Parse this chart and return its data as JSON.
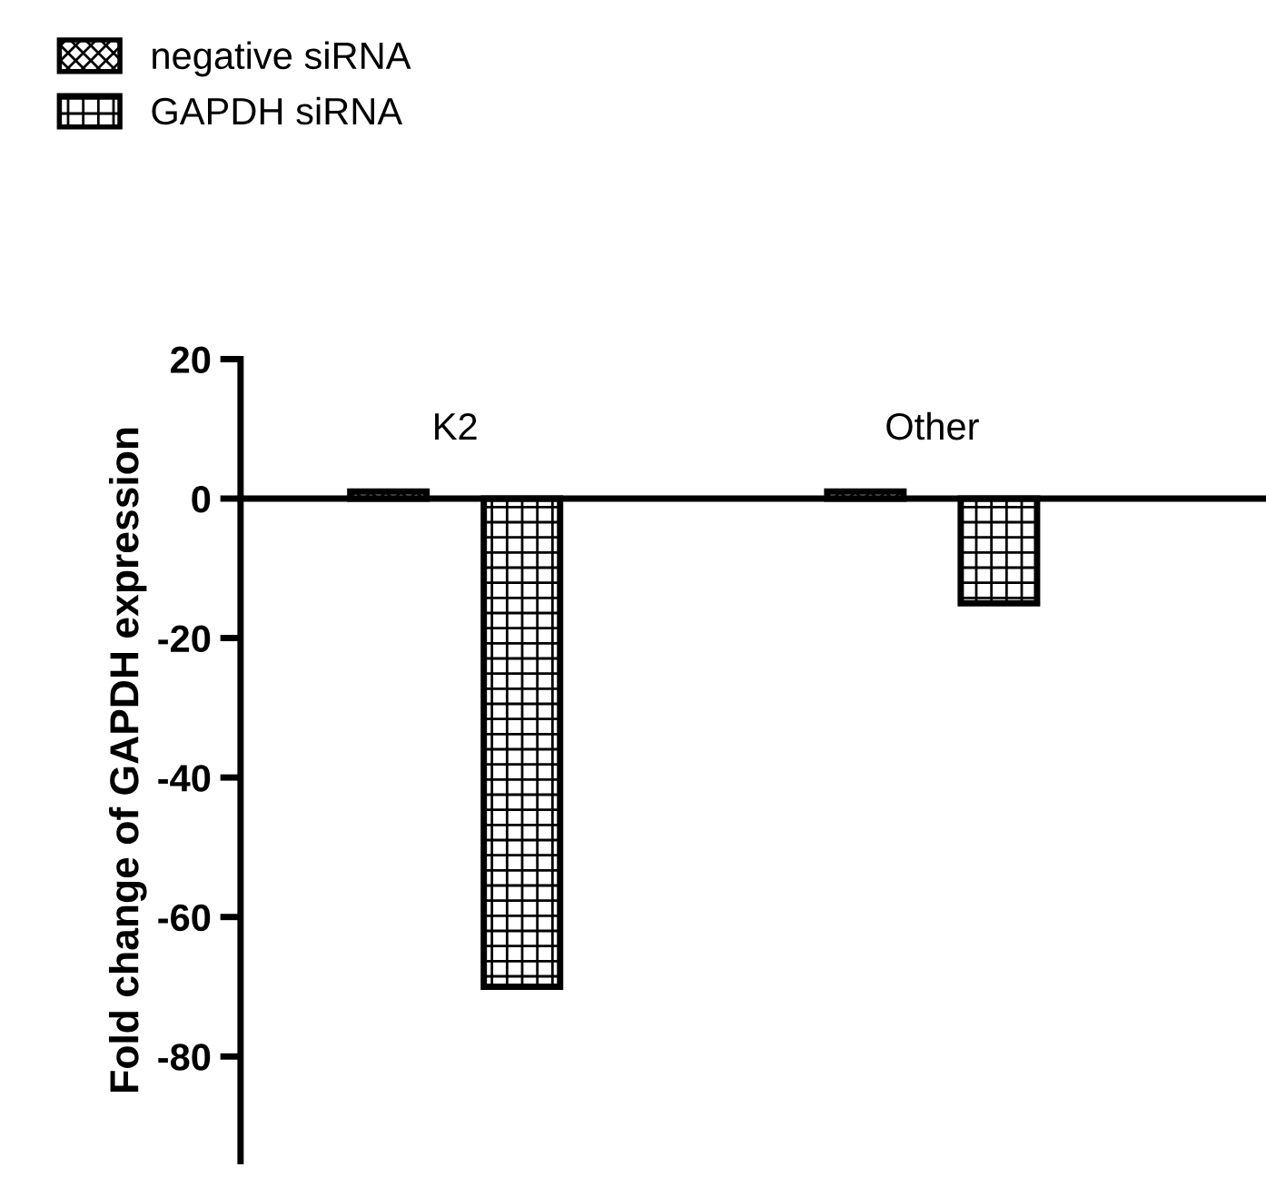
{
  "chart_data": {
    "type": "bar",
    "ylabel": "Fold change of GAPDH expression",
    "categories": [
      "K2",
      "Other"
    ],
    "series": [
      {
        "name": "negative siRNA",
        "color": "#000000",
        "values": [
          1,
          1
        ]
      },
      {
        "name": "GAPDH siRNA",
        "color": "#000000",
        "values": [
          -70,
          -15
        ]
      }
    ],
    "ylim": [
      -95,
      20
    ],
    "yticks": [
      20,
      0,
      -20,
      -40,
      -60,
      -80
    ],
    "legend": "top left",
    "grid": false
  }
}
